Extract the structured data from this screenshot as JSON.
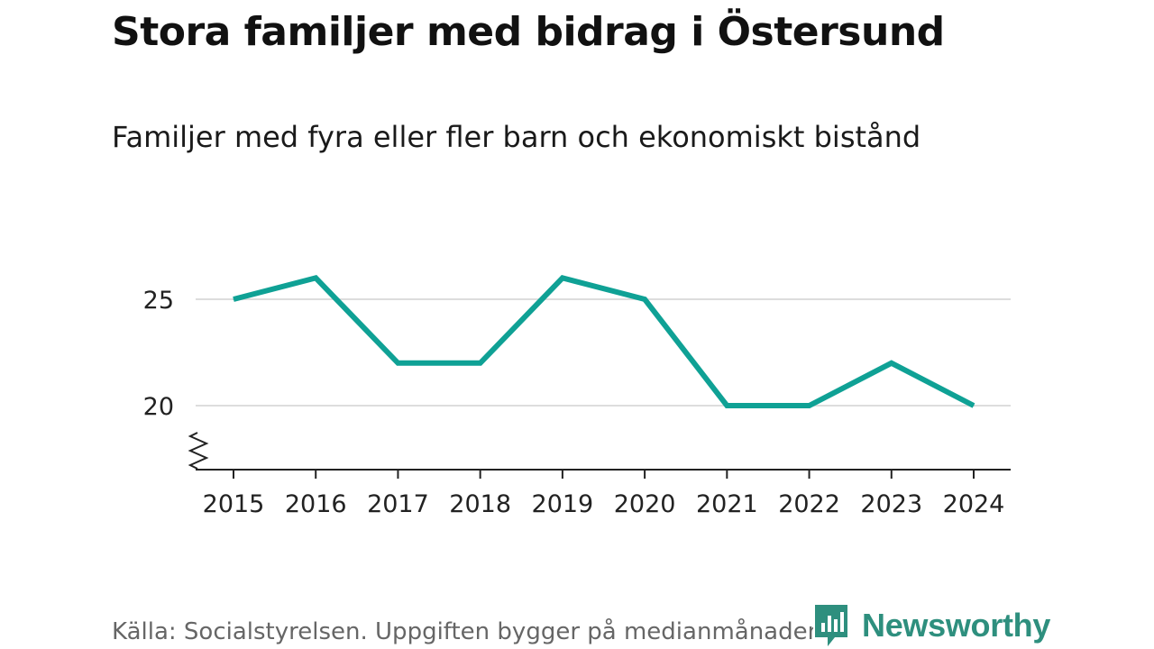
{
  "header": {
    "title": "Stora familjer med bidrag i Östersund",
    "subtitle": "Familjer med fyra eller fler barn och ekonomiskt bistånd"
  },
  "footer": {
    "source": "Källa: Socialstyrelsen. Uppgiften bygger på medianmånaden för varje år",
    "logo_text": "Newsworthy"
  },
  "colors": {
    "line": "#0fa195",
    "grid": "#dddddd",
    "axis": "#222222",
    "brand": "#2e8f7e"
  },
  "chart_data": {
    "type": "line",
    "title": "Stora familjer med bidrag i Östersund",
    "subtitle": "Familjer med fyra eller fler barn och ekonomiskt bistånd",
    "xlabel": "",
    "ylabel": "",
    "x": [
      "2015",
      "2016",
      "2017",
      "2018",
      "2019",
      "2020",
      "2021",
      "2022",
      "2023",
      "2024"
    ],
    "series": [
      {
        "name": "Familjer med fyra eller fler barn och ekonomiskt bistånd",
        "values": [
          25,
          26,
          22,
          22,
          26,
          25,
          20,
          20,
          22,
          20
        ]
      }
    ],
    "yticks": [
      "20",
      "25"
    ],
    "ylim": [
      17,
      27
    ],
    "grid": true,
    "axis_break": true,
    "legend": "none"
  }
}
